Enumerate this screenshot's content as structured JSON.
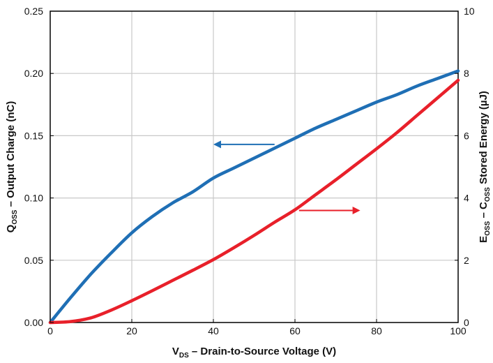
{
  "chart_data": {
    "type": "line",
    "title": "",
    "xlabel": {
      "main": "V",
      "sub": "DS",
      "rest": " – Drain-to-Source Voltage (V)"
    },
    "ylabel_left": {
      "main": "Q",
      "sub": "OSS",
      "rest": " – Output Charge (nC)"
    },
    "ylabel_right": {
      "main": "E",
      "sub": "OSS",
      "mid": " – C",
      "sub2": "OSS",
      "rest": " Stored Energy (µJ)"
    },
    "xlim": [
      0,
      100
    ],
    "ylim_left": [
      0,
      0.25
    ],
    "ylim_right": [
      0,
      10
    ],
    "x_ticks": [
      0,
      20,
      40,
      60,
      80,
      100
    ],
    "x_tick_labels": [
      "0",
      "20",
      "40",
      "60",
      "80",
      "100"
    ],
    "y_left_ticks": [
      0,
      0.05,
      0.1,
      0.15,
      0.2,
      0.25
    ],
    "y_left_tick_labels": [
      "0.00",
      "0.05",
      "0.10",
      "0.15",
      "0.20",
      "0.25"
    ],
    "y_right_ticks": [
      0,
      2,
      4,
      6,
      8,
      10
    ],
    "y_right_tick_labels": [
      "0",
      "2",
      "4",
      "6",
      "8",
      "10"
    ],
    "grid": true,
    "legend": "none",
    "series": [
      {
        "axis": "left",
        "color": "#1f6fb5",
        "x": [
          0,
          5,
          10,
          15,
          20,
          25,
          30,
          35,
          40,
          45,
          50,
          55,
          60,
          65,
          70,
          75,
          80,
          85,
          90,
          95,
          100
        ],
        "y": [
          0.0,
          0.02,
          0.039,
          0.056,
          0.072,
          0.085,
          0.096,
          0.105,
          0.116,
          0.124,
          0.132,
          0.14,
          0.148,
          0.156,
          0.163,
          0.17,
          0.177,
          0.183,
          0.19,
          0.196,
          0.202
        ]
      },
      {
        "axis": "right",
        "color": "#e8202a",
        "x": [
          0,
          5,
          10,
          15,
          20,
          25,
          30,
          35,
          40,
          45,
          50,
          55,
          60,
          65,
          70,
          75,
          80,
          85,
          90,
          95,
          100
        ],
        "y": [
          0.0,
          0.03,
          0.15,
          0.4,
          0.7,
          1.02,
          1.35,
          1.68,
          2.02,
          2.4,
          2.8,
          3.22,
          3.62,
          4.1,
          4.58,
          5.08,
          5.58,
          6.1,
          6.66,
          7.22,
          7.78
        ]
      }
    ],
    "annotations": [
      {
        "type": "arrow",
        "color": "#1f6fb5",
        "from": [
          55,
          0.143
        ],
        "to": [
          40,
          0.143
        ],
        "axis": "left"
      },
      {
        "type": "arrow",
        "color": "#e8202a",
        "from": [
          61,
          3.6
        ],
        "to": [
          76,
          3.6
        ],
        "axis": "right"
      }
    ]
  }
}
